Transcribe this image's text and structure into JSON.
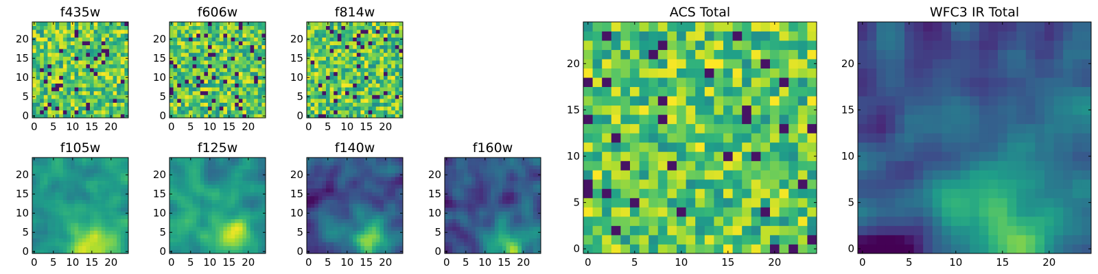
{
  "chart_data": [
    {
      "type": "heatmap",
      "title": "f435w",
      "xticks": [
        "0",
        "5",
        "10",
        "15",
        "20"
      ],
      "yticks": [
        "0",
        "5",
        "10",
        "15",
        "20"
      ],
      "xlim": [
        -0.5,
        24.5
      ],
      "ylim": [
        -0.5,
        24.5
      ],
      "grid_size": 25,
      "colormap": "viridis",
      "grid": false,
      "texture": "speckled",
      "bright_center": [
        12,
        12
      ],
      "seed": 11
    },
    {
      "type": "heatmap",
      "title": "f606w",
      "xticks": [
        "0",
        "5",
        "10",
        "15",
        "20"
      ],
      "yticks": [
        "0",
        "5",
        "10",
        "15",
        "20"
      ],
      "xlim": [
        -0.5,
        24.5
      ],
      "ylim": [
        -0.5,
        24.5
      ],
      "grid_size": 25,
      "colormap": "viridis",
      "grid": false,
      "texture": "speckled",
      "bright_center": [
        12,
        12
      ],
      "seed": 23
    },
    {
      "type": "heatmap",
      "title": "f814w",
      "xticks": [
        "0",
        "5",
        "10",
        "15",
        "20"
      ],
      "yticks": [
        "0",
        "5",
        "10",
        "15",
        "20"
      ],
      "xlim": [
        -0.5,
        24.5
      ],
      "ylim": [
        -0.5,
        24.5
      ],
      "grid_size": 25,
      "colormap": "viridis",
      "grid": false,
      "texture": "speckled",
      "bright_center": [
        12,
        10
      ],
      "seed": 37
    },
    {
      "type": "heatmap",
      "title": "f105w",
      "xticks": [
        "0",
        "5",
        "10",
        "15",
        "20"
      ],
      "yticks": [
        "0",
        "5",
        "10",
        "15",
        "20"
      ],
      "xlim": [
        -0.5,
        24.5
      ],
      "ylim": [
        -0.5,
        24.5
      ],
      "grid_size": 25,
      "colormap": "viridis",
      "grid": false,
      "texture": "smooth-bright",
      "bright_center": [
        15,
        3
      ],
      "seed": 41
    },
    {
      "type": "heatmap",
      "title": "f125w",
      "xticks": [
        "0",
        "5",
        "10",
        "15",
        "20"
      ],
      "yticks": [
        "0",
        "5",
        "10",
        "15",
        "20"
      ],
      "xlim": [
        -0.5,
        24.5
      ],
      "ylim": [
        -0.5,
        24.5
      ],
      "grid_size": 25,
      "colormap": "viridis",
      "grid": false,
      "texture": "smooth-bright",
      "bright_center": [
        16,
        3
      ],
      "seed": 53
    },
    {
      "type": "heatmap",
      "title": "f140w",
      "xticks": [
        "0",
        "5",
        "10",
        "15",
        "20"
      ],
      "yticks": [
        "0",
        "5",
        "10",
        "15",
        "20"
      ],
      "xlim": [
        -0.5,
        24.5
      ],
      "ylim": [
        -0.5,
        24.5
      ],
      "grid_size": 25,
      "colormap": "viridis",
      "grid": false,
      "texture": "smooth-dark",
      "bright_center": [
        16,
        2
      ],
      "seed": 67
    },
    {
      "type": "heatmap",
      "title": "f160w",
      "xticks": [
        "0",
        "5",
        "10",
        "15",
        "20"
      ],
      "yticks": [
        "0",
        "5",
        "10",
        "15",
        "20"
      ],
      "xlim": [
        -0.5,
        24.5
      ],
      "ylim": [
        -0.5,
        24.5
      ],
      "grid_size": 25,
      "colormap": "viridis",
      "grid": false,
      "texture": "smooth-dark",
      "bright_center": [
        16,
        1
      ],
      "seed": 79
    },
    {
      "type": "heatmap",
      "title": "ACS Total",
      "xticks": [
        "0",
        "5",
        "10",
        "15",
        "20"
      ],
      "yticks": [
        "0",
        "5",
        "10",
        "15",
        "20"
      ],
      "xlim": [
        -0.5,
        24.5
      ],
      "ylim": [
        -0.5,
        24.5
      ],
      "grid_size": 25,
      "colormap": "viridis",
      "grid": false,
      "texture": "speckled",
      "bright_center": [
        13,
        10
      ],
      "seed": 89
    },
    {
      "type": "heatmap",
      "title": "WFC3 IR Total",
      "xticks": [
        "0",
        "5",
        "10",
        "15",
        "20"
      ],
      "yticks": [
        "0",
        "5",
        "10",
        "15",
        "20"
      ],
      "xlim": [
        -0.5,
        24.5
      ],
      "ylim": [
        -0.5,
        24.5
      ],
      "grid_size": 25,
      "colormap": "viridis",
      "grid": false,
      "texture": "smooth-dark",
      "bright_center": [
        16,
        2
      ],
      "seed": 97
    }
  ]
}
